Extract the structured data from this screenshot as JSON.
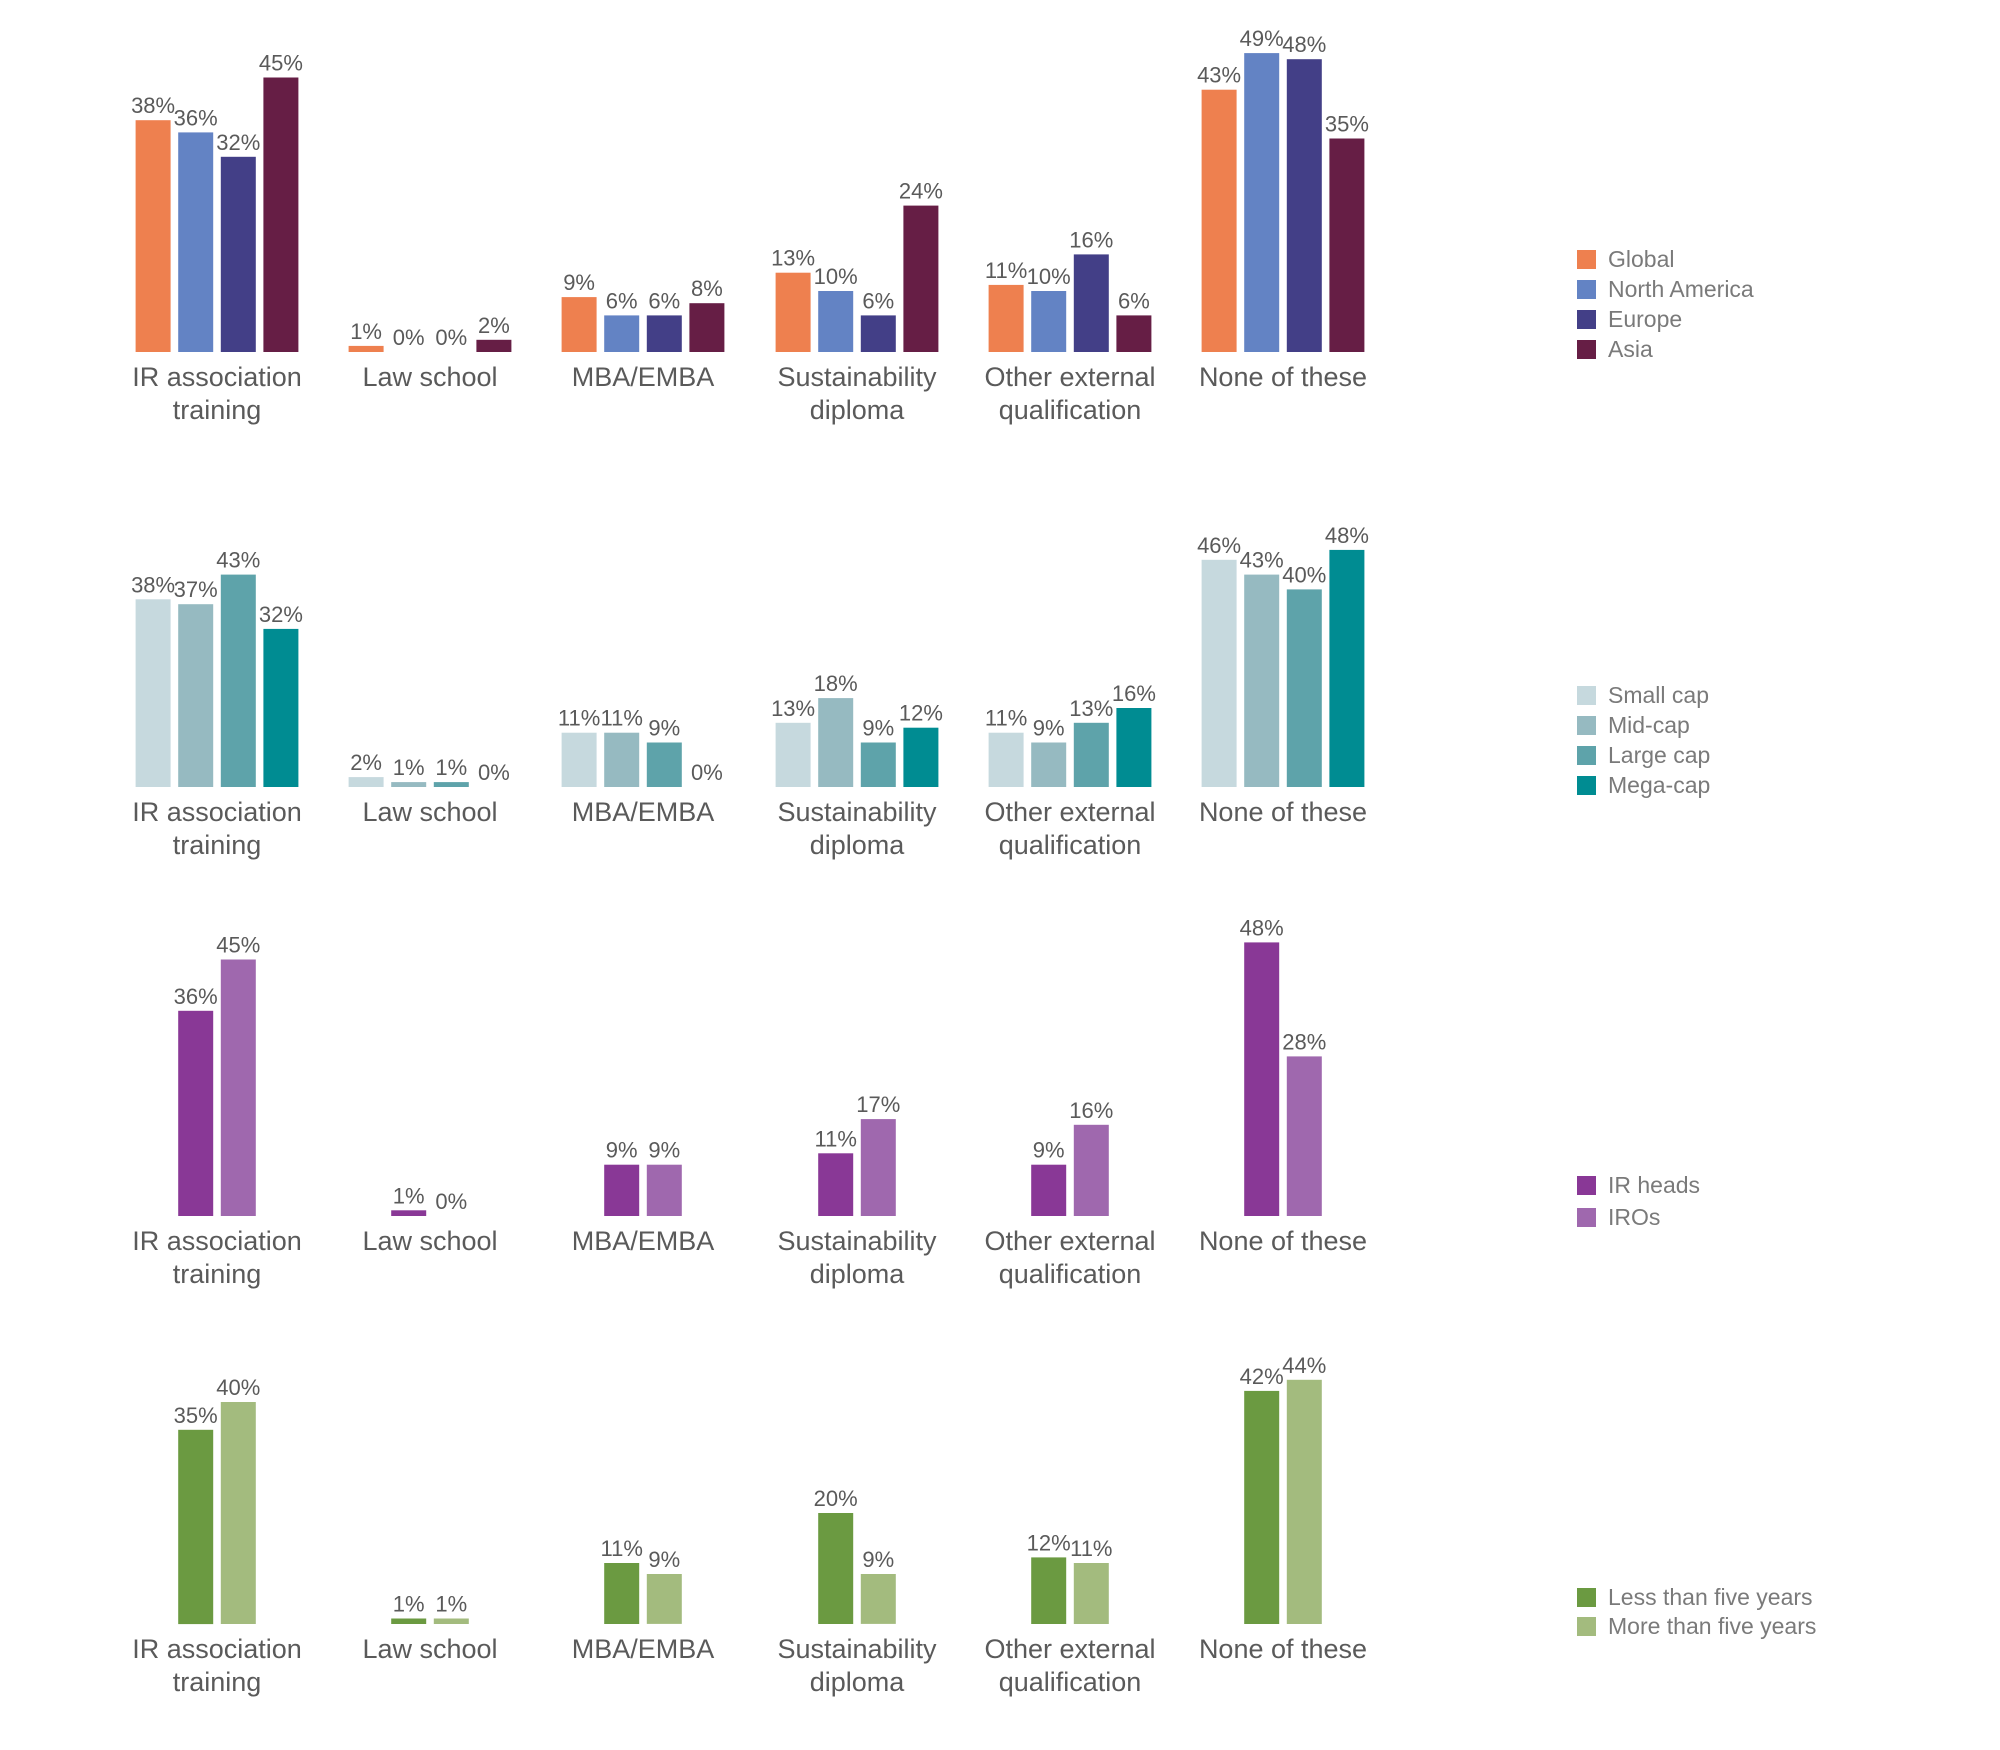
{
  "colors": {
    "global": "#EE804F",
    "north_america": "#6383C4",
    "europe": "#433F87",
    "asia": "#661E45",
    "small_cap": "#C6D9DE",
    "mid_cap": "#96BAC1",
    "large_cap": "#5EA3AA",
    "mega_cap": "#008C92",
    "ir_heads": "#893896",
    "iros": "#9F68AE",
    "less_than_five": "#6B9A41",
    "more_than_five": "#A3BB7E",
    "text": "#5a5a5a",
    "legend_text": "#7a7a7a"
  },
  "chart_data": [
    {
      "type": "bar",
      "categories": [
        "IR association\ntraining",
        "Law school",
        "MBA/EMBA",
        "Sustainability\ndiploma",
        "Other external\nqualification",
        "None of these"
      ],
      "series": [
        {
          "name": "Global",
          "color": "#EE804F",
          "values": [
            38,
            1,
            9,
            13,
            11,
            43
          ],
          "labels": [
            "38%",
            "1%",
            "9%",
            "13%",
            "11%",
            "43%"
          ]
        },
        {
          "name": "North America",
          "color": "#6383C4",
          "values": [
            36,
            0,
            6,
            10,
            10,
            49
          ],
          "labels": [
            "36%",
            "0%",
            "6%",
            "10%",
            "10%",
            "49%"
          ]
        },
        {
          "name": "Europe",
          "color": "#433F87",
          "values": [
            32,
            0,
            6,
            6,
            16,
            48
          ],
          "labels": [
            "32%",
            "0%",
            "6%",
            "6%",
            "16%",
            "48%"
          ]
        },
        {
          "name": "Asia",
          "color": "#661E45",
          "values": [
            45,
            2,
            8,
            24,
            6,
            35
          ],
          "labels": [
            "45%",
            "2%",
            "8%",
            "24%",
            "6%",
            "35%"
          ]
        }
      ],
      "legend_position": "right"
    },
    {
      "type": "bar",
      "categories": [
        "IR association\ntraining",
        "Law school",
        "MBA/EMBA",
        "Sustainability\ndiploma",
        "Other external\nqualification",
        "None of these"
      ],
      "series": [
        {
          "name": "Small cap",
          "color": "#C6D9DE",
          "values": [
            38,
            2,
            11,
            13,
            11,
            46
          ],
          "labels": [
            "38%",
            "2%",
            "11%",
            "13%",
            "11%",
            "46%"
          ]
        },
        {
          "name": "Mid-cap",
          "color": "#96BAC1",
          "values": [
            37,
            1,
            11,
            18,
            9,
            43
          ],
          "labels": [
            "37%",
            "1%",
            "11%",
            "18%",
            "9%",
            "43%"
          ]
        },
        {
          "name": "Large cap",
          "color": "#5EA3AA",
          "values": [
            43,
            1,
            9,
            9,
            13,
            40
          ],
          "labels": [
            "43%",
            "1%",
            "9%",
            "9%",
            "13%",
            "40%"
          ]
        },
        {
          "name": "Mega-cap",
          "color": "#008C92",
          "values": [
            32,
            0,
            0,
            12,
            16,
            48
          ],
          "labels": [
            "32%",
            "0%",
            "0%",
            "12%",
            "16%",
            "48%"
          ]
        }
      ],
      "legend_position": "right"
    },
    {
      "type": "bar",
      "categories": [
        "IR association\ntraining",
        "Law school",
        "MBA/EMBA",
        "Sustainability\ndiploma",
        "Other external\nqualification",
        "None of these"
      ],
      "series": [
        {
          "name": "IR heads",
          "color": "#893896",
          "values": [
            36,
            1,
            9,
            11,
            9,
            48
          ],
          "labels": [
            "36%",
            "1%",
            "9%",
            "11%",
            "9%",
            "48%"
          ]
        },
        {
          "name": "IROs",
          "color": "#9F68AE",
          "values": [
            45,
            0,
            9,
            17,
            16,
            28
          ],
          "labels": [
            "45%",
            "0%",
            "9%",
            "17%",
            "16%",
            "28%"
          ]
        }
      ],
      "legend_position": "right"
    },
    {
      "type": "bar",
      "categories": [
        "IR association\ntraining",
        "Law school",
        "MBA/EMBA",
        "Sustainability\ndiploma",
        "Other external\nqualification",
        "None of these"
      ],
      "series": [
        {
          "name": "Less than five years",
          "color": "#6B9A41",
          "values": [
            35,
            1,
            11,
            20,
            12,
            42
          ],
          "labels": [
            "35%",
            "1%",
            "11%",
            "20%",
            "12%",
            "42%"
          ]
        },
        {
          "name": "More than five years",
          "color": "#A3BB7E",
          "values": [
            40,
            1,
            9,
            9,
            11,
            44
          ],
          "labels": [
            "40%",
            "1%",
            "9%",
            "9%",
            "11%",
            "44%"
          ]
        }
      ],
      "legend_position": "right"
    }
  ]
}
